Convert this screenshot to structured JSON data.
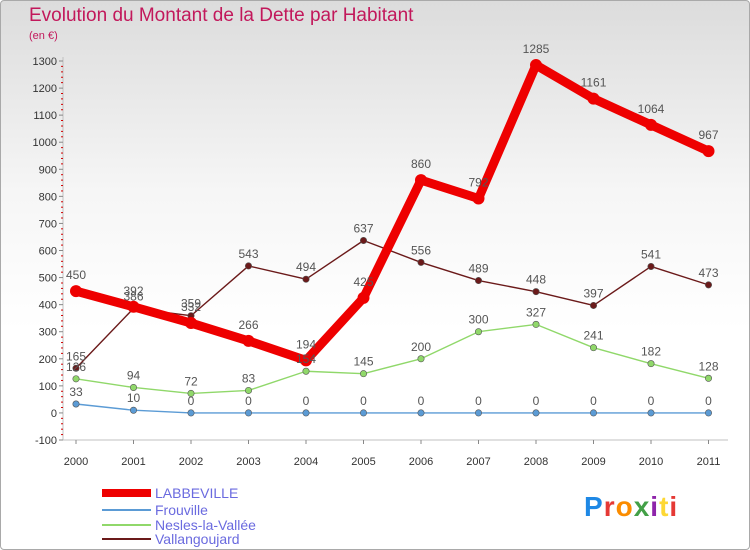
{
  "title": "Evolution du Montant de la Dette par Habitant",
  "subtitle": "(en €)",
  "logo": "Proxiti",
  "chart_data": {
    "type": "line",
    "x": [
      "2000",
      "2001",
      "2002",
      "2003",
      "2004",
      "2005",
      "2006",
      "2007",
      "2008",
      "2009",
      "2010",
      "2011"
    ],
    "ylim": [
      -100,
      1300
    ],
    "yticks": [
      -100,
      0,
      100,
      200,
      300,
      400,
      500,
      600,
      700,
      800,
      900,
      1000,
      1100,
      1200,
      1300
    ],
    "grid": false,
    "legend_position": "bottom-left",
    "series": [
      {
        "name": "Vallangoujard",
        "color": "#6b1a1a",
        "values": [
          165,
          386,
          359,
          543,
          494,
          637,
          556,
          489,
          448,
          397,
          541,
          473
        ]
      },
      {
        "name": "Nesles-la-Vallée",
        "color": "#90d86a",
        "values": [
          126,
          94,
          72,
          83,
          154,
          145,
          200,
          300,
          327,
          241,
          182,
          128
        ]
      },
      {
        "name": "Frouville",
        "color": "#5b9bd5",
        "values": [
          33,
          10,
          0,
          0,
          0,
          0,
          0,
          0,
          0,
          0,
          0,
          0
        ]
      },
      {
        "name": "LABBEVILLE",
        "color": "#ee0000",
        "values": [
          450,
          392,
          332,
          266,
          194,
          425,
          860,
          792,
          1285,
          1161,
          1064,
          967
        ]
      }
    ],
    "legend": [
      "LABBEVILLE",
      "Frouville",
      "Nesles-la-Vallée",
      "Vallangoujard"
    ]
  }
}
